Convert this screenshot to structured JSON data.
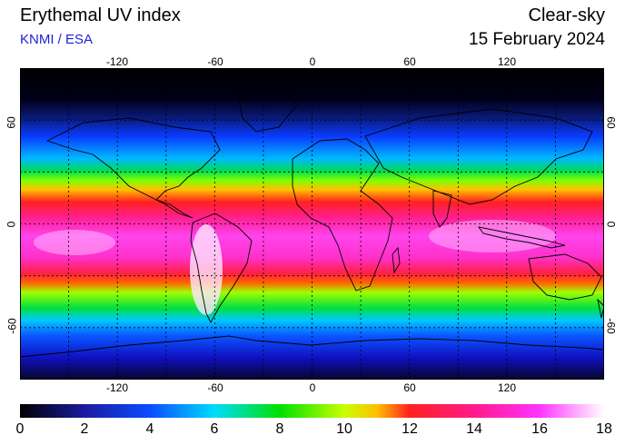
{
  "header": {
    "title": "Erythemal UV index",
    "subtitle": "KNMI / ESA",
    "sky_condition": "Clear-sky",
    "date": "15 February 2024"
  },
  "map": {
    "projection": "equirectangular",
    "lon_ticks": [
      "-120",
      "-60",
      "0",
      "60",
      "120"
    ],
    "lat_ticks": [
      "60",
      "0",
      "-60"
    ],
    "grid": "dotted every 30 degrees",
    "colors": {
      "land_outline": "#000000",
      "grid": "#000000",
      "polar_night": "#000000"
    }
  },
  "colorbar": {
    "min": 0,
    "max": 18,
    "labels": [
      "0",
      "2",
      "4",
      "6",
      "8",
      "10",
      "12",
      "14",
      "16",
      "18"
    ],
    "stops": [
      {
        "value": 0,
        "color": "#000000"
      },
      {
        "value": 2,
        "color": "#1c1ca0"
      },
      {
        "value": 4,
        "color": "#0a4bff"
      },
      {
        "value": 6,
        "color": "#00dcff"
      },
      {
        "value": 8,
        "color": "#00e000"
      },
      {
        "value": 10,
        "color": "#c8ff00"
      },
      {
        "value": 11,
        "color": "#ffc000"
      },
      {
        "value": 12,
        "color": "#ff2020"
      },
      {
        "value": 14,
        "color": "#ff1a8c"
      },
      {
        "value": 16,
        "color": "#ff33ff"
      },
      {
        "value": 18,
        "color": "#ffffff"
      }
    ]
  }
}
